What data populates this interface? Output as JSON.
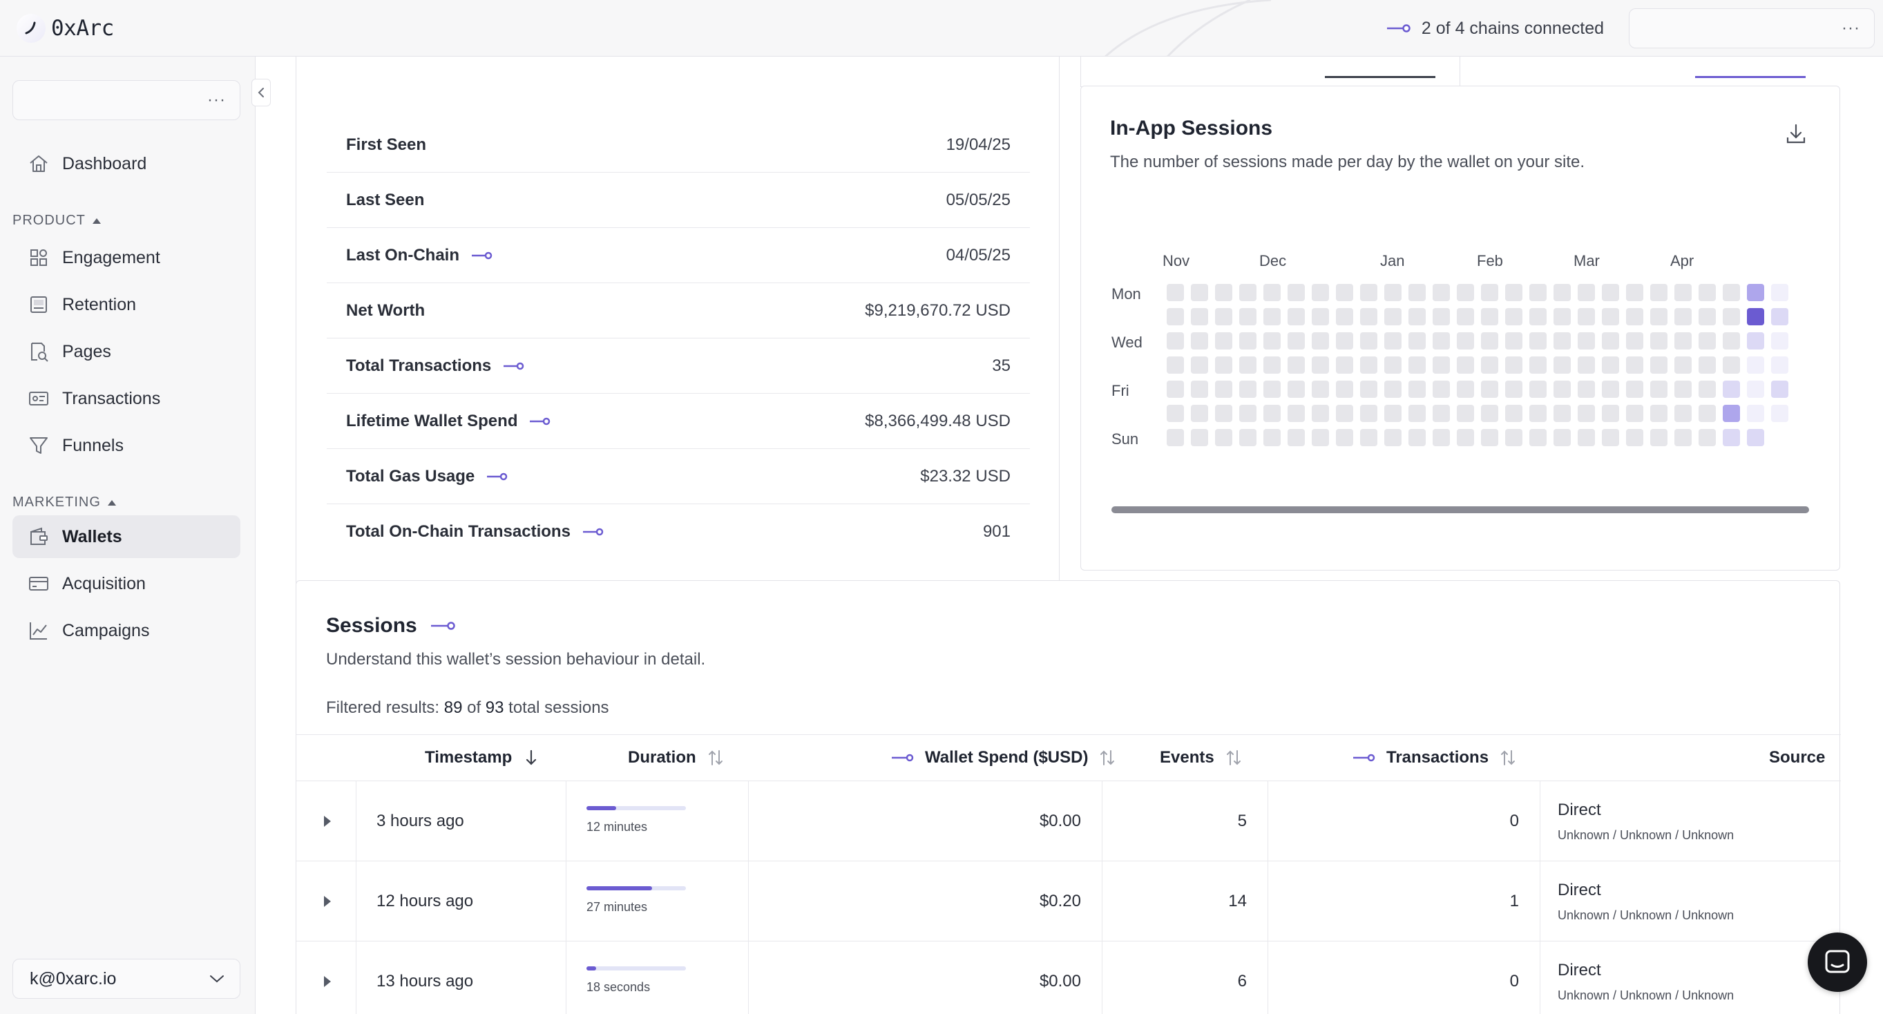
{
  "app": {
    "name": "0xArc"
  },
  "header": {
    "chains_connected": "2 of 4 chains connected"
  },
  "sidebar": {
    "items": [
      {
        "label": "Dashboard",
        "icon": "home-icon"
      },
      {
        "label": "Engagement",
        "icon": "engagement-icon"
      },
      {
        "label": "Retention",
        "icon": "retention-icon"
      },
      {
        "label": "Pages",
        "icon": "pages-icon"
      },
      {
        "label": "Transactions",
        "icon": "transactions-icon"
      },
      {
        "label": "Funnels",
        "icon": "funnel-icon"
      },
      {
        "label": "Wallets",
        "icon": "wallet-icon",
        "active": true
      },
      {
        "label": "Acquisition",
        "icon": "acquisition-icon"
      },
      {
        "label": "Campaigns",
        "icon": "campaigns-icon"
      }
    ],
    "sections": {
      "product": "PRODUCT",
      "marketing": "MARKETING"
    },
    "user": "k@0xarc.io"
  },
  "stats": [
    {
      "label": "First Seen",
      "value": "19/04/25",
      "onchain": false
    },
    {
      "label": "Last Seen",
      "value": "05/05/25",
      "onchain": false
    },
    {
      "label": "Last On-Chain",
      "value": "04/05/25",
      "onchain": true
    },
    {
      "label": "Net Worth",
      "value": "$9,219,670.72 USD",
      "onchain": false
    },
    {
      "label": "Total Transactions",
      "value": "35",
      "onchain": true
    },
    {
      "label": "Lifetime Wallet Spend",
      "value": "$8,366,499.48 USD",
      "onchain": true
    },
    {
      "label": "Total Gas Usage",
      "value": "$23.32 USD",
      "onchain": true
    },
    {
      "label": "Total On-Chain Transactions",
      "value": "901",
      "onchain": true
    }
  ],
  "heatmap": {
    "title": "In-App Sessions",
    "subtitle": "The number of sessions made per day by the wallet on your site.",
    "months": [
      "Nov",
      "Dec",
      "Jan",
      "Feb",
      "Mar",
      "Apr"
    ],
    "day_labels": [
      "Mon",
      "Wed",
      "Fri",
      "Sun"
    ],
    "colors": {
      "empty": "#e6e6ea",
      "l1": "#f1f0fb",
      "l2": "#dcd9f5",
      "l3": "#aea6ec",
      "l4": "#6b5bd1"
    }
  },
  "sessions": {
    "title": "Sessions",
    "subtitle": "Understand this wallet’s session behaviour in detail.",
    "filtered_prefix": "Filtered results: ",
    "filtered_count": "89",
    "filtered_of": " of ",
    "filtered_total": "93",
    "filtered_suffix": " total sessions",
    "columns": {
      "timestamp": "Timestamp",
      "duration": "Duration",
      "spend": "Wallet Spend ($USD)",
      "events": "Events",
      "transactions": "Transactions",
      "source": "Source"
    },
    "rows": [
      {
        "timestamp": "3 hours ago",
        "duration": "12 minutes",
        "duration_fill": 0.3,
        "spend": "$0.00",
        "events": "5",
        "transactions": "0",
        "source": "Direct",
        "source_detail": "Unknown / Unknown / Unknown"
      },
      {
        "timestamp": "12 hours ago",
        "duration": "27 minutes",
        "duration_fill": 0.66,
        "spend": "$0.20",
        "events": "14",
        "transactions": "1",
        "source": "Direct",
        "source_detail": "Unknown / Unknown / Unknown"
      },
      {
        "timestamp": "13 hours ago",
        "duration": "18 seconds",
        "duration_fill": 0.1,
        "spend": "$0.00",
        "events": "6",
        "transactions": "0",
        "source": "Direct",
        "source_detail": "Unknown / Unknown / Unknown"
      }
    ]
  },
  "accent": "#6b5bd1"
}
